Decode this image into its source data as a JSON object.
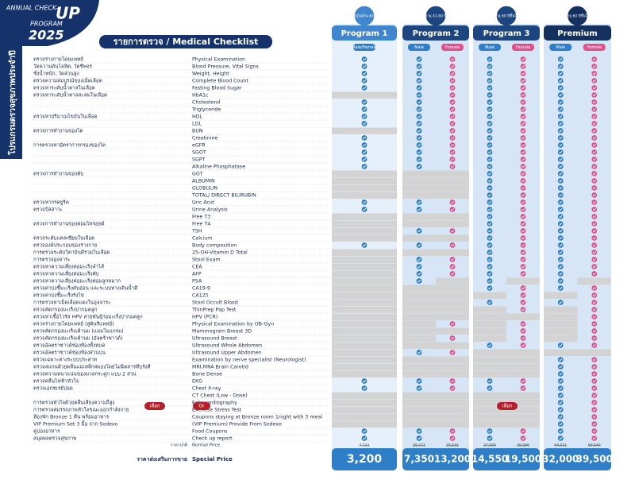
{
  "header": {
    "line1": "ANNUAL CHECK-",
    "line2": "UP",
    "line3": "PROGRAM",
    "line4": "2025",
    "side": "โปรแกรมตรวจสุขภาพประจำปี"
  },
  "title": "รายการตรวจ / Medical Checklist",
  "programs": [
    {
      "name": "Program 1",
      "age": "อายุไม่เกิน 40 ปี",
      "columns": [
        {
          "label": "Male/Female",
          "color": "#2f7fc8"
        }
      ]
    },
    {
      "name": "Program 2",
      "age": "อายุ 41-60 ปี",
      "columns": [
        {
          "label": "Male",
          "color": "#2f7fc8"
        },
        {
          "label": "Female",
          "color": "#e0508a"
        }
      ]
    },
    {
      "name": "Program 3",
      "age": "อายุ 60 ปีขึ้นไป",
      "columns": [
        {
          "label": "Male",
          "color": "#2f7fc8"
        },
        {
          "label": "Female",
          "color": "#e0508a"
        }
      ]
    },
    {
      "name": "Premium",
      "age": "อายุ 60 ปีขึ้นไป",
      "columns": [
        {
          "label": "Male",
          "color": "#2f7fc8"
        },
        {
          "label": "Female",
          "color": "#e0508a"
        }
      ]
    }
  ],
  "rows": [
    {
      "th": "ตรวจร่างกายโดยแพทย์",
      "en": "Physical Examination",
      "checks": [
        true,
        true,
        true,
        true,
        true,
        true,
        true
      ]
    },
    {
      "th": "วัดความดันโลหิต, วัดชีพจร",
      "en": "Blood Pressure, Vital Signs",
      "checks": [
        true,
        true,
        true,
        true,
        true,
        true,
        true
      ]
    },
    {
      "th": "ชั่งน้ำหนัก, วัดส่วนสูง",
      "en": "Weight, Height",
      "checks": [
        true,
        true,
        true,
        true,
        true,
        true,
        true
      ]
    },
    {
      "th": "ตรวจความสมบูรณ์ของเม็ดเลือด",
      "en": "Complete Blood Count",
      "checks": [
        true,
        true,
        true,
        true,
        true,
        true,
        true
      ]
    },
    {
      "th": "ตรวจหาระดับน้ำตาลในเลือด",
      "en": "Fasting Blood Sugar",
      "checks": [
        true,
        true,
        true,
        true,
        true,
        true,
        true
      ]
    },
    {
      "th": "ตรวจหาระดับน้ำตาลสะสมในเลือด",
      "en": "HbA1c",
      "checks": [
        false,
        true,
        true,
        true,
        true,
        true,
        true
      ]
    },
    {
      "th": null,
      "en": "Cholesterol",
      "checks": [
        true,
        true,
        true,
        true,
        true,
        true,
        true
      ]
    },
    {
      "th": null,
      "en": "Triglyceride",
      "checks": [
        true,
        true,
        true,
        true,
        true,
        true,
        true
      ]
    },
    {
      "th": "ตรวจหาปริมาณไขมันในเลือด",
      "en": "HDL",
      "checks": [
        true,
        true,
        true,
        true,
        true,
        true,
        true
      ]
    },
    {
      "th": null,
      "en": "LDL",
      "checks": [
        true,
        true,
        true,
        true,
        true,
        true,
        true
      ]
    },
    {
      "th": "ตรวจการทำงานของไต",
      "en": "BUN",
      "checks": [
        false,
        true,
        true,
        true,
        true,
        true,
        true
      ]
    },
    {
      "th": null,
      "en": "Creatinine",
      "checks": [
        true,
        true,
        true,
        true,
        true,
        true,
        true
      ]
    },
    {
      "th": "การตรวจหาอัตราการกรองของไต",
      "en": "eGFR",
      "checks": [
        true,
        true,
        true,
        true,
        true,
        true,
        true
      ]
    },
    {
      "th": null,
      "en": "SGOT",
      "checks": [
        true,
        true,
        true,
        true,
        true,
        true,
        true
      ]
    },
    {
      "th": null,
      "en": "SGPT",
      "checks": [
        true,
        true,
        true,
        true,
        true,
        true,
        true
      ]
    },
    {
      "th": null,
      "en": "Alkaline Phosphatase",
      "checks": [
        true,
        true,
        true,
        true,
        true,
        true,
        true
      ]
    },
    {
      "th": "ตรวจการทำงานของตับ",
      "en": "GGT",
      "checks": [
        false,
        false,
        false,
        true,
        true,
        true,
        true
      ]
    },
    {
      "th": null,
      "en": "ALBUMIN",
      "checks": [
        false,
        false,
        false,
        true,
        true,
        true,
        true
      ]
    },
    {
      "th": null,
      "en": "GLOBULIN",
      "checks": [
        false,
        false,
        false,
        true,
        true,
        true,
        true
      ]
    },
    {
      "th": null,
      "en": "TOTAL/ DIRECT BILIRUBIN",
      "checks": [
        false,
        false,
        false,
        true,
        true,
        true,
        true
      ]
    },
    {
      "th": "ตรวจหากรดยูริค",
      "en": "Uric Acid",
      "checks": [
        true,
        true,
        true,
        true,
        true,
        true,
        true
      ]
    },
    {
      "th": "ตรวจปัสสาวะ",
      "en": "Urine Analysis",
      "checks": [
        true,
        true,
        true,
        true,
        true,
        true,
        true
      ]
    },
    {
      "th": null,
      "en": "Free T3",
      "checks": [
        false,
        false,
        false,
        true,
        true,
        true,
        true
      ]
    },
    {
      "th": "ตรวจการทำงานของต่อมไทรอยด์",
      "en": "Free T4",
      "checks": [
        false,
        false,
        false,
        true,
        true,
        true,
        true
      ]
    },
    {
      "th": null,
      "en": "TSH",
      "checks": [
        false,
        true,
        true,
        true,
        true,
        true,
        true
      ]
    },
    {
      "th": "ตรวจระดับแคลเซียมในเลือด",
      "en": "Calcium",
      "checks": [
        false,
        false,
        false,
        true,
        true,
        true,
        true
      ]
    },
    {
      "th": "ตรวจองค์ประกอบของร่างกาย",
      "en": "Body composition",
      "checks": [
        true,
        true,
        true,
        true,
        true,
        true,
        true
      ]
    },
    {
      "th": "การตรวจระดับวิตามินดีรวมในเลือด",
      "en": "25-OH-Vitamin D Total",
      "checks": [
        false,
        false,
        false,
        true,
        true,
        true,
        true
      ]
    },
    {
      "th": "การตรวจอุจจาระ",
      "en": "Stool Exam",
      "checks": [
        false,
        true,
        true,
        true,
        true,
        true,
        true
      ]
    },
    {
      "th": "ตรวจหาความเสี่ยงต่อมะเร็งลำไส้",
      "en": "CEA",
      "checks": [
        false,
        true,
        true,
        true,
        true,
        true,
        true
      ]
    },
    {
      "th": "ตรวจหาความเสี่ยงต่อมะเร็งตับ",
      "en": "AFP",
      "checks": [
        false,
        true,
        true,
        true,
        true,
        true,
        true
      ]
    },
    {
      "th": "ตรวจหาความเสี่ยงต่อมะเร็งต่อมลูกหมาก",
      "en": "PSA",
      "checks": [
        false,
        true,
        false,
        true,
        false,
        true,
        false
      ]
    },
    {
      "th": "ตรวจค่าบ่งชี้มะเร็งตับอ่อน และระบบทางเดินน้ำดี",
      "en": "CA19-9",
      "checks": [
        false,
        false,
        false,
        true,
        true,
        true,
        true
      ]
    },
    {
      "th": "ตรวจค่าบ่งชี้มะเร็งรังไข่",
      "en": "CA125",
      "checks": [
        false,
        false,
        false,
        false,
        true,
        false,
        true
      ]
    },
    {
      "th": "การตรวจหาเม็ดเลือดแดงในอุจจาระ",
      "en": "Stool Occult Blood",
      "checks": [
        false,
        false,
        false,
        true,
        true,
        true,
        true
      ]
    },
    {
      "th": "ตรวจคัดกรองมะเร็งปากมดลูก",
      "en": "ThinPrep Pap Test",
      "checks": [
        false,
        false,
        false,
        false,
        true,
        false,
        true
      ]
    },
    {
      "th": "ตรวจหาเชื้อไวรัส HPV สายพันธุ์ก่อมะเร็งปากมดลูก",
      "en": "HPV (PCR)",
      "checks": [
        false,
        false,
        false,
        false,
        false,
        false,
        true
      ]
    },
    {
      "th": "ตรวจร่างกายโดยแพทย์ (สูตินรีแพทย์)",
      "en": "Physical Examination by OB-Gyn",
      "checks": [
        false,
        false,
        true,
        false,
        true,
        false,
        true
      ]
    },
    {
      "th": "ตรวจคัดกรองมะเร็งเต้านม (แมมโมแกรม)",
      "en": "Mammogram Breast 3D",
      "checks": [
        false,
        false,
        false,
        false,
        true,
        false,
        true
      ]
    },
    {
      "th": "ตรวจคัดกรองมะเร็งเต้านม (อัลตร้าซาวด์)",
      "en": "Ultrasound Breast",
      "checks": [
        false,
        false,
        true,
        false,
        true,
        false,
        true
      ]
    },
    {
      "th": "ตรวจอัลตราซาวด์ช่องท้องทั้งหมด",
      "en": "Ultrasound Whole Abdomen",
      "checks": [
        false,
        false,
        false,
        true,
        true,
        true,
        true
      ]
    },
    {
      "th": "ตรวจอัลตราซาวด์ช่องท้องส่วนบน",
      "en": "Ultrasound Upper Abdomen",
      "checks": [
        false,
        true,
        true,
        false,
        false,
        false,
        false
      ]
    },
    {
      "th": "ตรวจเฉพาะทางระบบประสาท",
      "en": "Examination by nerve specialist (Neurologist)",
      "checks": [
        false,
        false,
        false,
        false,
        false,
        true,
        true
      ]
    },
    {
      "th": "ตรวจสแกนด้วยคลื่นแม่เหล็กสมองโดยไม่ฉีดสารทึบรังสี",
      "en": "MRI,MRA Brain Carotid",
      "checks": [
        false,
        false,
        false,
        false,
        false,
        true,
        true
      ]
    },
    {
      "th": "ตรวจความหนาแน่นของมวลกระดูก แบบ 2 ส่วน",
      "en": "Bone Dense",
      "checks": [
        false,
        false,
        false,
        false,
        false,
        true,
        true
      ]
    },
    {
      "th": "ตรวจคลื่นไฟฟ้าหัวใจ",
      "en": "EKG",
      "checks": [
        true,
        true,
        true,
        true,
        true,
        true,
        true
      ]
    },
    {
      "th": "ตรวจเอกซเรย์ปอด",
      "en": "Chest X-ray",
      "checks": [
        true,
        true,
        true,
        true,
        true,
        true,
        true
      ]
    },
    {
      "th": null,
      "en": "CT Chest (Low - Dose)",
      "checks": [
        false,
        false,
        false,
        false,
        false,
        true,
        true
      ]
    },
    {
      "th": "การตรวจหัวใจด้วยคลื่นเสียงความถี่สูง",
      "en": "Echocardiography",
      "checks": [
        false,
        false,
        false,
        false,
        false,
        true,
        true
      ]
    },
    {
      "th": "การตรวจสมรรถภาพหัวใจขณะออกกำลังกาย",
      "en": "Exercise Stress Test",
      "checks": [
        false,
        false,
        false,
        false,
        false,
        true,
        true
      ]
    },
    {
      "th": "ห้องพัก Bronze 1 คืน พร้อมอาหาร",
      "en": "Coupons staying at Bronze room 1night  with 3 meal",
      "checks": [
        false,
        false,
        false,
        false,
        false,
        true,
        true
      ]
    },
    {
      "th": "VIP Premium Set 3 มื้อ จาก Sodexo",
      "en": "(VIP Premium) Provide From Sodexo",
      "checks": [
        false,
        false,
        false,
        false,
        false,
        true,
        true
      ]
    },
    {
      "th": "คูปองอาหาร",
      "en": "Food Coupons",
      "checks": [
        true,
        true,
        true,
        true,
        true,
        true,
        true
      ]
    },
    {
      "th": "สมุดผลตรวจสุขภาพ",
      "en": "Check up report",
      "checks": [
        true,
        true,
        true,
        true,
        true,
        true,
        true
      ]
    }
  ],
  "choice": {
    "label": "เลือก",
    "or": "Or",
    "program_label": "เลือก"
  },
  "prices": {
    "normal_th": "ราคาปกติ",
    "normal_en": "Normal Price",
    "special_th": "ราคาส่งเสริมการขาย",
    "special_en": "Special Price",
    "normal": [
      "7,121",
      "16,721",
      "25,531",
      "27,000",
      "36,586",
      "64,011",
      "69,040"
    ],
    "special": [
      "3,200",
      "7,350",
      "13,200",
      "14,550",
      "19,500",
      "32,000",
      "39,500"
    ]
  }
}
